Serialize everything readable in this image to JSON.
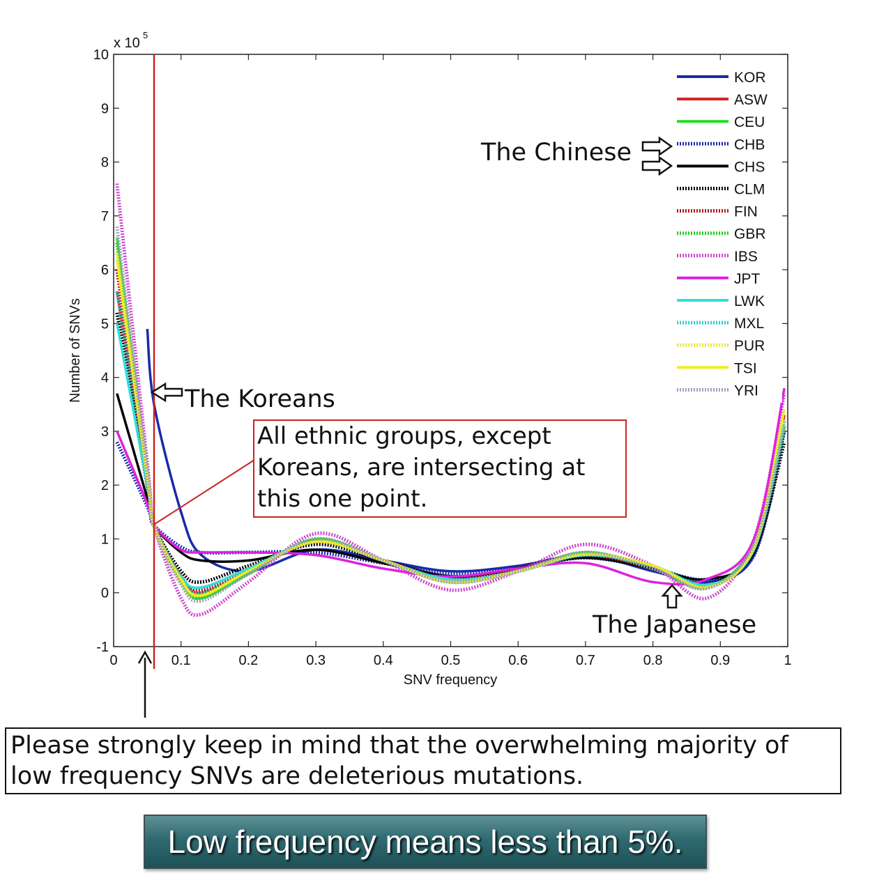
{
  "chart_data": {
    "type": "line",
    "xlabel": "SNV frequency",
    "ylabel": "Number of SNVs",
    "y_multiplier": "x 10",
    "y_multiplier_exp": "5",
    "xlim": [
      0,
      1
    ],
    "ylim": [
      -1,
      10
    ],
    "x_ticks": [
      "0",
      "0.1",
      "0.2",
      "0.3",
      "0.4",
      "0.5",
      "0.6",
      "0.7",
      "0.8",
      "0.9",
      "1"
    ],
    "y_ticks": [
      "-1",
      "0",
      "1",
      "2",
      "3",
      "4",
      "5",
      "6",
      "7",
      "8",
      "9",
      "10"
    ],
    "grid": false,
    "legend_position": "top-right",
    "x": [
      0.005,
      0.05,
      0.06,
      0.1,
      0.13,
      0.2,
      0.3,
      0.4,
      0.5,
      0.6,
      0.7,
      0.8,
      0.88,
      0.95,
      0.995
    ],
    "series": [
      {
        "name": "KOR",
        "color": "#1a2aa8",
        "style": "solid",
        "values": [
          null,
          4.9,
          3.5,
          1.5,
          0.7,
          0.4,
          0.8,
          0.6,
          0.4,
          0.5,
          0.7,
          0.4,
          0.2,
          0.7,
          3.0
        ]
      },
      {
        "name": "ASW",
        "color": "#d42020",
        "style": "solid",
        "values": [
          5.6,
          2.0,
          1.25,
          0.3,
          0.0,
          0.4,
          0.95,
          0.6,
          0.2,
          0.4,
          0.7,
          0.5,
          0.1,
          0.9,
          3.3
        ]
      },
      {
        "name": "CEU",
        "color": "#22dd22",
        "style": "solid",
        "values": [
          6.6,
          2.2,
          1.25,
          0.2,
          -0.1,
          0.35,
          1.0,
          0.6,
          0.2,
          0.4,
          0.75,
          0.45,
          0.1,
          0.9,
          3.0
        ]
      },
      {
        "name": "CHB",
        "color": "#1a2aa8",
        "style": "dotted",
        "values": [
          2.8,
          1.6,
          1.25,
          0.85,
          0.75,
          0.75,
          0.75,
          0.55,
          0.35,
          0.45,
          0.65,
          0.45,
          0.25,
          0.7,
          3.0
        ]
      },
      {
        "name": "CHS",
        "color": "#000000",
        "style": "solid",
        "values": [
          3.7,
          1.75,
          1.25,
          0.75,
          0.6,
          0.6,
          0.8,
          0.55,
          0.3,
          0.45,
          0.65,
          0.45,
          0.25,
          0.75,
          3.0
        ]
      },
      {
        "name": "CLM",
        "color": "#000000",
        "style": "dotted",
        "values": [
          5.2,
          2.0,
          1.25,
          0.4,
          0.2,
          0.5,
          0.9,
          0.6,
          0.3,
          0.45,
          0.7,
          0.45,
          0.15,
          0.8,
          2.8
        ]
      },
      {
        "name": "FIN",
        "color": "#b01818",
        "style": "dotted",
        "values": [
          6.0,
          2.1,
          1.25,
          0.3,
          0.05,
          0.4,
          0.95,
          0.6,
          0.25,
          0.45,
          0.7,
          0.45,
          0.12,
          0.85,
          3.2
        ]
      },
      {
        "name": "GBR",
        "color": "#22cc22",
        "style": "dotted",
        "values": [
          6.5,
          2.2,
          1.25,
          0.2,
          -0.1,
          0.35,
          1.0,
          0.6,
          0.2,
          0.4,
          0.75,
          0.45,
          0.1,
          0.9,
          3.1
        ]
      },
      {
        "name": "IBS",
        "color": "#cc44cc",
        "style": "dotted",
        "values": [
          7.6,
          2.4,
          1.25,
          -0.1,
          -0.4,
          0.2,
          1.1,
          0.6,
          0.05,
          0.4,
          0.9,
          0.5,
          -0.1,
          1.0,
          3.7
        ]
      },
      {
        "name": "JPT",
        "color": "#dd22dd",
        "style": "solid",
        "values": [
          3.0,
          1.65,
          1.25,
          0.8,
          0.75,
          0.75,
          0.7,
          0.45,
          0.3,
          0.45,
          0.55,
          0.2,
          0.25,
          1.0,
          3.8
        ]
      },
      {
        "name": "LWK",
        "color": "#33dddd",
        "style": "solid",
        "values": [
          5.0,
          2.0,
          1.25,
          0.3,
          0.1,
          0.45,
          0.95,
          0.6,
          0.25,
          0.4,
          0.7,
          0.5,
          0.15,
          0.8,
          3.2
        ]
      },
      {
        "name": "MXL",
        "color": "#33cccc",
        "style": "dotted",
        "values": [
          5.6,
          2.05,
          1.25,
          0.25,
          0.0,
          0.4,
          0.95,
          0.6,
          0.2,
          0.4,
          0.7,
          0.5,
          0.1,
          0.85,
          3.0
        ]
      },
      {
        "name": "PUR",
        "color": "#e8e83a",
        "style": "dotted",
        "values": [
          6.3,
          2.15,
          1.25,
          0.2,
          -0.05,
          0.4,
          0.95,
          0.6,
          0.2,
          0.4,
          0.72,
          0.5,
          0.1,
          0.85,
          3.2
        ]
      },
      {
        "name": "TSI",
        "color": "#eeee22",
        "style": "solid",
        "values": [
          6.2,
          2.15,
          1.25,
          0.25,
          -0.05,
          0.4,
          0.95,
          0.6,
          0.2,
          0.4,
          0.72,
          0.5,
          0.1,
          0.85,
          3.4
        ]
      },
      {
        "name": "YRI",
        "color": "#a0a0c0",
        "style": "dotted",
        "values": [
          6.8,
          2.25,
          1.25,
          0.15,
          -0.15,
          0.35,
          1.0,
          0.6,
          0.2,
          0.4,
          0.75,
          0.45,
          0.08,
          0.9,
          3.1
        ]
      }
    ],
    "reference_line": {
      "x": 0.06,
      "color": "#cc2222"
    },
    "annotations": {
      "chinese": "The Chinese",
      "koreans": "The Koreans",
      "japanese": "The Japanese",
      "callout": [
        "All ethnic groups, except",
        "Koreans, are intersecting at",
        "this one point."
      ]
    }
  },
  "note": [
    "Please strongly keep in mind that the overwhelming majority of",
    "low frequency SNVs are deleterious mutations."
  ],
  "banner": "Low frequency means less than 5%."
}
